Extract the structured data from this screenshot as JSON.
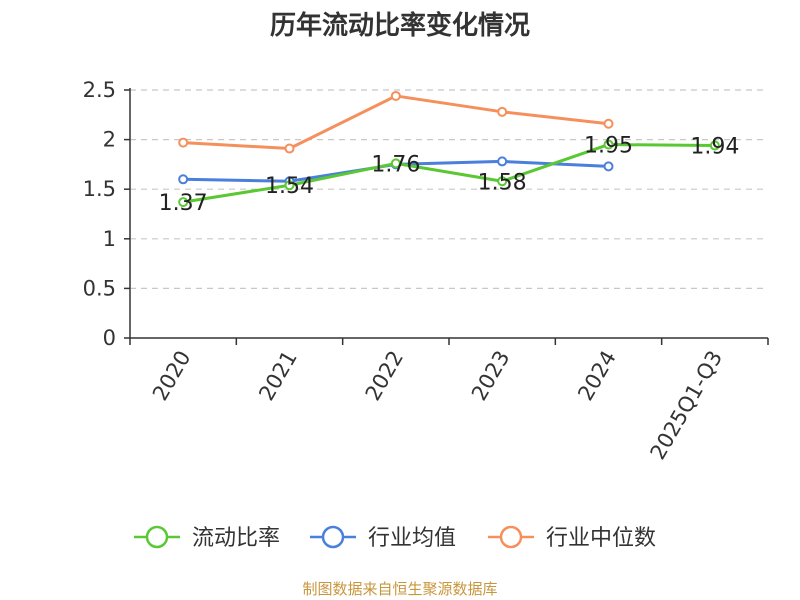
{
  "chart_data": {
    "type": "line",
    "title": "历年流动比率变化情况",
    "categories": [
      "2020",
      "2021",
      "2022",
      "2023",
      "2024",
      "2025Q1-Q3"
    ],
    "ylim": [
      0,
      2.5
    ],
    "yticks": [
      0,
      0.5,
      1,
      1.5,
      2,
      2.5
    ],
    "ytick_labels": [
      "0",
      "0.5",
      "1",
      "1.5",
      "2",
      "2.5"
    ],
    "grid": true,
    "legend_position": "bottom",
    "series": [
      {
        "name": "流动比率",
        "color": "#5ac833",
        "values": [
          1.37,
          1.54,
          1.76,
          1.58,
          1.95,
          1.94
        ],
        "labels": [
          "1.37",
          "1.54",
          "1.76",
          "1.58",
          "1.95",
          "1.94"
        ]
      },
      {
        "name": "行业均值",
        "color": "#4a7fdc",
        "values": [
          1.6,
          1.58,
          1.75,
          1.78,
          1.73,
          null
        ]
      },
      {
        "name": "行业中位数",
        "color": "#f5905c",
        "values": [
          1.97,
          1.91,
          2.44,
          2.28,
          2.16,
          null
        ]
      }
    ]
  },
  "footer": {
    "source": "制图数据来自恒生聚源数据库",
    "source_color": "#c8963c"
  }
}
